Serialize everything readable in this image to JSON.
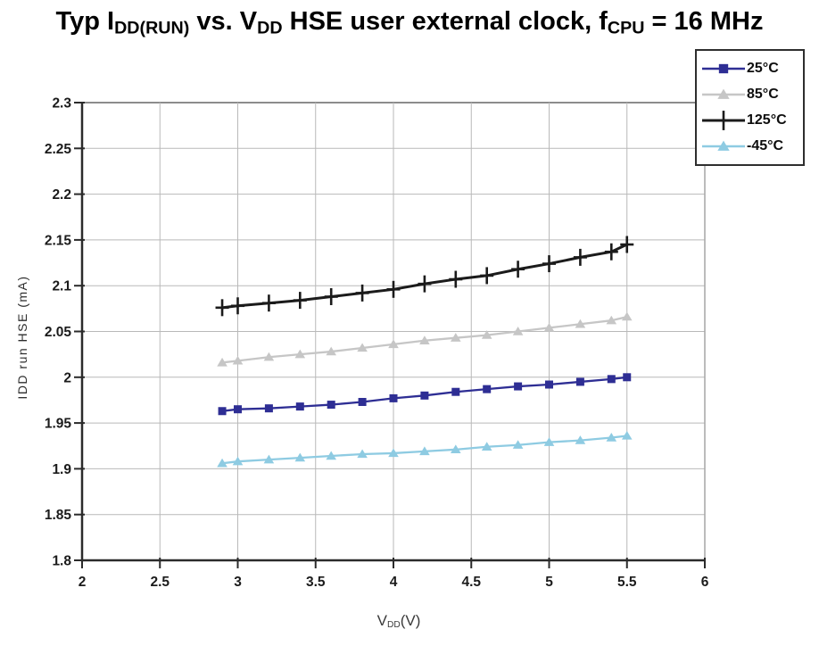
{
  "title": {
    "seg1": "Typ I",
    "sub1": "DD(RUN)",
    "seg2": " vs. V",
    "sub2": "DD",
    "seg3": " HSE user external clock, f",
    "sub3": "CPU",
    "seg4": " = 16 MHz"
  },
  "axes": {
    "y_label": "IDD run HSE (mA)",
    "x_label_main": "V",
    "x_label_sub": "DD",
    "x_label_unit": "(V)"
  },
  "chart_data": {
    "type": "line",
    "title": "Typ IDD(RUN) vs. VDD HSE user external clock, fCPU = 16 MHz",
    "xlabel": "VDD (V)",
    "ylabel": "IDD run HSE (mA)",
    "xlim": [
      2,
      6
    ],
    "ylim": [
      1.8,
      2.3
    ],
    "grid": true,
    "legend_position": "top-right",
    "x_ticks": [
      2,
      2.5,
      3,
      3.5,
      4,
      4.5,
      5,
      5.5,
      6
    ],
    "x_tick_labels": [
      "2",
      "2.5",
      "3",
      "3.5",
      "4",
      "4.5",
      "5",
      "5.5",
      "6"
    ],
    "y_ticks": [
      1.8,
      1.85,
      1.9,
      1.95,
      2,
      2.05,
      2.1,
      2.15,
      2.2,
      2.25,
      2.3
    ],
    "y_tick_labels": [
      "1.8",
      "1.85",
      "1.9",
      "1.95",
      "2",
      "2.05",
      "2.1",
      "2.15",
      "2.2",
      "2.25",
      "2.3"
    ],
    "x": [
      2.9,
      3.0,
      3.2,
      3.4,
      3.6,
      3.8,
      4.0,
      4.2,
      4.4,
      4.6,
      4.8,
      5.0,
      5.2,
      5.4,
      5.5
    ],
    "series": [
      {
        "name": "25°C",
        "color": "#2e2e94",
        "marker": "square",
        "values": [
          1.963,
          1.965,
          1.966,
          1.968,
          1.97,
          1.973,
          1.977,
          1.98,
          1.984,
          1.987,
          1.99,
          1.992,
          1.995,
          1.998,
          2.0
        ]
      },
      {
        "name": "85°C",
        "color": "#c6c6c6",
        "marker": "triangle",
        "values": [
          2.016,
          2.018,
          2.022,
          2.025,
          2.028,
          2.032,
          2.036,
          2.04,
          2.043,
          2.046,
          2.05,
          2.054,
          2.058,
          2.062,
          2.066
        ]
      },
      {
        "name": "125°C",
        "color": "#1b1b1b",
        "marker": "plus",
        "values": [
          2.076,
          2.078,
          2.081,
          2.084,
          2.088,
          2.092,
          2.096,
          2.102,
          2.107,
          2.111,
          2.118,
          2.124,
          2.131,
          2.137,
          2.145
        ]
      },
      {
        "name": "-45°C",
        "color": "#8ecbe2",
        "marker": "triangle",
        "values": [
          1.906,
          1.908,
          1.91,
          1.912,
          1.914,
          1.916,
          1.917,
          1.919,
          1.921,
          1.924,
          1.926,
          1.929,
          1.931,
          1.934,
          1.936
        ]
      }
    ],
    "style": {
      "grid_color": "#b9b9b9",
      "top_border_color": "#8c8c8c",
      "right_border_color": "#a6a6a6",
      "axis_color": "#2b2b2b",
      "tick_label_color": "#1b1b1b"
    }
  }
}
